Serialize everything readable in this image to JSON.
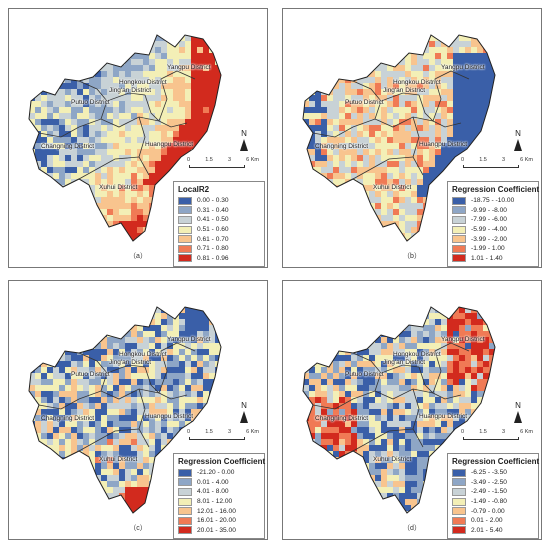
{
  "colors": {
    "c1": "#3a5fa8",
    "c2": "#8ea6c6",
    "c3": "#c8d2d6",
    "c4": "#f3efb6",
    "c5": "#f8c48e",
    "c6": "#f07a55",
    "c7": "#d22a1e"
  },
  "districts": [
    "Yangpu District",
    "Hongkou District",
    "Jing'an District",
    "Putuo District",
    "Changning District",
    "Huangpu District",
    "Xuhui District"
  ],
  "scalebar": {
    "ticks": [
      "0",
      "1.5",
      "3",
      "6 Km"
    ]
  },
  "north_label": "N",
  "panels": [
    {
      "letter": "（a）",
      "legend_title": "LocalR2",
      "legend": [
        "0.00 - 0.30",
        "0.31 - 0.40",
        "0.41 - 0.50",
        "0.51 - 0.60",
        "0.61 - 0.70",
        "0.71 - 0.80",
        "0.81 - 0.96"
      ]
    },
    {
      "letter": "（b）",
      "legend_title": "Regression Coefficient",
      "legend": [
        "-18.75 - -10.00",
        "-9.99 - -8.00",
        "-7.99 - -6.00",
        "-5.99 - -4.00",
        "-3.99 - -2.00",
        "-1.99 - 1.00",
        "1.01 - 1.40"
      ]
    },
    {
      "letter": "（c）",
      "legend_title": "Regression Coefficient",
      "legend": [
        "-21.20 - 0.00",
        "0.01 - 4.00",
        "4.01 - 8.00",
        "8.01 - 12.00",
        "12.01 - 16.00",
        "16.01 - 20.00",
        "20.01 - 35.00"
      ]
    },
    {
      "letter": "（d）",
      "legend_title": "Regression Coefficient",
      "legend": [
        "-6.25 - -3.50",
        "-3.49 - -2.50",
        "-2.49 - -1.50",
        "-1.49 - -0.80",
        "-0.79 - 0.00",
        "0.01 - 2.00",
        "2.01 - 5.40"
      ]
    }
  ]
}
